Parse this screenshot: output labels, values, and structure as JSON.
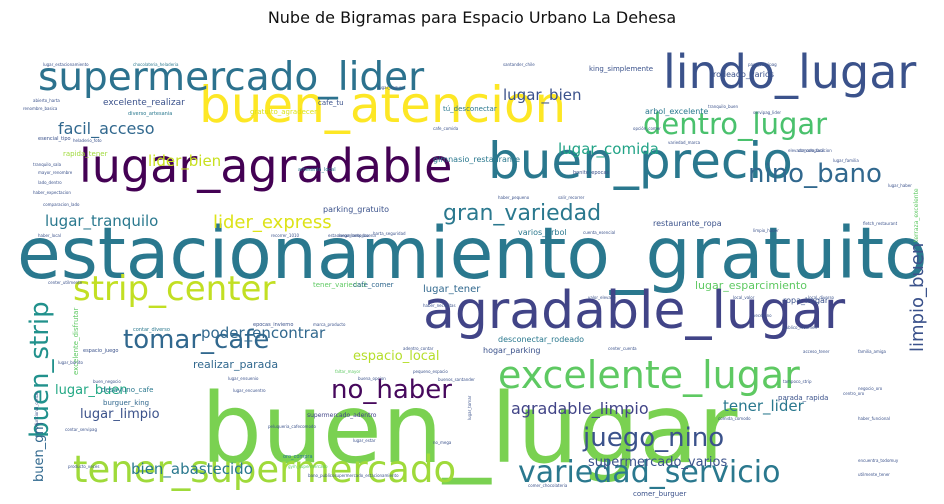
{
  "chart_data": {
    "type": "wordcloud",
    "title": "Nube de Bigramas para Espacio Urbano La Dehesa",
    "colormap": "viridis",
    "words": [
      {
        "text": "estacionamiento_gratuito",
        "weight": 100,
        "color": "#2a788e"
      },
      {
        "text": "buen_lugar",
        "weight": 98,
        "color": "#7ad151"
      },
      {
        "text": "agradable_lugar",
        "weight": 62,
        "color": "#414487"
      },
      {
        "text": "buen_atencion",
        "weight": 60,
        "color": "#fde725"
      },
      {
        "text": "buen_precio",
        "weight": 60,
        "color": "#2a788e"
      },
      {
        "text": "lugar_agradable",
        "weight": 55,
        "color": "#440154"
      },
      {
        "text": "lindo_lugar",
        "weight": 55,
        "color": "#3b528b"
      },
      {
        "text": "supermercado_lider",
        "weight": 45,
        "color": "#2c728e"
      },
      {
        "text": "excelente_lugar",
        "weight": 43,
        "color": "#5ec962"
      },
      {
        "text": "tener_supermercado",
        "weight": 43,
        "color": "#9fda3a"
      },
      {
        "text": "strip_center",
        "weight": 40,
        "color": "#c2df23"
      },
      {
        "text": "variedad_servicio",
        "weight": 34,
        "color": "#2a788e"
      },
      {
        "text": "dentro_lugar",
        "weight": 33,
        "color": "#4ac16d"
      },
      {
        "text": "juego_nino",
        "weight": 30,
        "color": "#3b528b"
      },
      {
        "text": "tomar_cafe",
        "weight": 29,
        "color": "#31688e"
      },
      {
        "text": "no_haber",
        "weight": 28,
        "color": "#46085c"
      },
      {
        "text": "nino_bano",
        "weight": 28,
        "color": "#31688e"
      },
      {
        "text": "gran_variedad",
        "weight": 25,
        "color": "#2a788e"
      },
      {
        "text": "buen_strip",
        "weight": 28,
        "color": "#21918c"
      },
      {
        "text": "limpio_buen",
        "weight": 20,
        "color": "#3b528b"
      },
      {
        "text": "lider_express",
        "weight": 19,
        "color": "#dde318"
      },
      {
        "text": "lider_bien",
        "weight": 16,
        "color": "#c8e020"
      },
      {
        "text": "facil_acceso",
        "weight": 16,
        "color": "#31688e"
      },
      {
        "text": "lugar_bien",
        "weight": 16,
        "color": "#3b528b"
      },
      {
        "text": "lugar_comida",
        "weight": 15,
        "color": "#20a386"
      },
      {
        "text": "lugar_tranquilo",
        "weight": 15,
        "color": "#2a788e"
      },
      {
        "text": "poder_encontrar",
        "weight": 15,
        "color": "#31688e"
      },
      {
        "text": "agradable_limpio",
        "weight": 17,
        "color": "#414487"
      },
      {
        "text": "bien_abastecido",
        "weight": 16,
        "color": "#2a788e"
      },
      {
        "text": "supermercado_varios",
        "weight": 14,
        "color": "#3b528b"
      },
      {
        "text": "tener_lider",
        "weight": 16,
        "color": "#2a788e"
      },
      {
        "text": "espacio_local",
        "weight": 13,
        "color": "#b5de2b"
      },
      {
        "text": "lugar_buen",
        "weight": 13,
        "color": "#22a884"
      },
      {
        "text": "lugar_limpio",
        "weight": 13,
        "color": "#3b528b"
      },
      {
        "text": "buen_gm",
        "weight": 13,
        "color": "#31688e"
      },
      {
        "text": "lugar_esparcimiento",
        "weight": 11,
        "color": "#5ec962"
      },
      {
        "text": "realizar_parada",
        "weight": 11,
        "color": "#31688e"
      },
      {
        "text": "excelente_realizar",
        "weight": 9,
        "color": "#3b528b"
      },
      {
        "text": "lugar_tener",
        "weight": 10,
        "color": "#31688e"
      },
      {
        "text": "gimnasio_restaurante",
        "weight": 8,
        "color": "#2a788e"
      },
      {
        "text": "parking_gratuito",
        "weight": 8,
        "color": "#3b528b"
      },
      {
        "text": "restaurante_ropa",
        "weight": 8,
        "color": "#3b528b"
      },
      {
        "text": "varios_arbol",
        "weight": 8,
        "color": "#2a788e"
      },
      {
        "text": "ropa_hogar",
        "weight": 8,
        "color": "#3b528b"
      },
      {
        "text": "hogar_parking",
        "weight": 8,
        "color": "#3b528b"
      },
      {
        "text": "desconectar_rodeado",
        "weight": 8,
        "color": "#2a788e"
      },
      {
        "text": "rodeado_varios",
        "weight": 8,
        "color": "#3b528b"
      },
      {
        "text": "arbol_excelente",
        "weight": 8,
        "color": "#2a788e"
      },
      {
        "text": "comer_burguer",
        "weight": 7,
        "color": "#3b528b"
      },
      {
        "text": "supermercado_adentro",
        "weight": 6,
        "color": "#414487"
      },
      {
        "text": "burguer_king",
        "weight": 7,
        "color": "#31688e"
      },
      {
        "text": "desayuno_cafe",
        "weight": 7,
        "color": "#2a788e"
      },
      {
        "text": "parada_rapida",
        "weight": 7,
        "color": "#3b528b"
      },
      {
        "text": "excelente_disfrutar",
        "weight": 7,
        "color": "#5ec962"
      },
      {
        "text": "tener_variedad",
        "weight": 7,
        "color": "#5ec962"
      },
      {
        "text": "cafe_comer",
        "weight": 7,
        "color": "#31688e"
      },
      {
        "text": "rapida_tener",
        "weight": 7,
        "color": "#9fda3a"
      },
      {
        "text": "gratuito_agradecer",
        "weight": 7,
        "color": "#dde318"
      },
      {
        "text": "cafe_tu",
        "weight": 7,
        "color": "#3b528b"
      },
      {
        "text": "tú_desconectar",
        "weight": 7,
        "color": "#2a788e"
      },
      {
        "text": "king_simplemente",
        "weight": 7,
        "color": "#3b528b"
      },
      {
        "text": "servicio_peluqueria",
        "weight": 7,
        "color": "#3b528b"
      },
      {
        "text": "disfrutar_desayuno",
        "weight": 7,
        "color": "#3b528b"
      },
      {
        "text": "simplemente_supermercado",
        "weight": 6,
        "color": "#3b528b"
      },
      {
        "text": "peluqueria_gimnasio",
        "weight": 7,
        "color": "#3b528b"
      },
      {
        "text": "espacio_juego",
        "weight": 5,
        "color": "#3b528b"
      },
      {
        "text": "contar_diverso",
        "weight": 5,
        "color": "#2a788e"
      },
      {
        "text": "oro_compra",
        "weight": 5,
        "color": "#2a788e"
      },
      {
        "text": "terraza_excelente",
        "weight": 6,
        "color": "#5ec962"
      },
      {
        "text": "bonito_epocas",
        "weight": 5,
        "color": "#3b528b"
      },
      {
        "text": "epocas_invierno",
        "weight": 5,
        "color": "#3b528b"
      },
      {
        "text": "artesania_local",
        "weight": 5,
        "color": "#2a788e"
      },
      {
        "text": "esencial_tipo",
        "weight": 5,
        "color": "#3b528b"
      },
      {
        "text": "diverso_artesania",
        "weight": 5,
        "color": "#2a788e"
      },
      {
        "text": "chocolateria_heladeria",
        "weight": 4,
        "color": "#2a788e"
      },
      {
        "text": "lugar_estacionamiento",
        "weight": 4,
        "color": "#3b528b"
      },
      {
        "text": "santander_chile",
        "weight": 4,
        "color": "#3b528b"
      },
      {
        "text": "paso_servipag",
        "weight": 4,
        "color": "#3b528b"
      },
      {
        "text": "abierto_harta",
        "weight": 4,
        "color": "#3b528b"
      },
      {
        "text": "tranquilo_buen",
        "weight": 4,
        "color": "#3b528b"
      },
      {
        "text": "elevado_comparacion",
        "weight": 4,
        "color": "#3b528b"
      },
      {
        "text": "lugar_familia",
        "weight": 4,
        "color": "#3b528b"
      },
      {
        "text": "lugar_haber",
        "weight": 4,
        "color": "#3b528b"
      },
      {
        "text": "fletch_restaurant",
        "weight": 4,
        "color": "#3b528b"
      },
      {
        "text": "comparacion_lado",
        "weight": 4,
        "color": "#3b528b"
      },
      {
        "text": "lado_dentro",
        "weight": 4,
        "color": "#3b528b"
      },
      {
        "text": "mayor_renombre",
        "weight": 4,
        "color": "#3b528b"
      },
      {
        "text": "tranquilo_sala",
        "weight": 4,
        "color": "#3b528b"
      },
      {
        "text": "heladerio_foto",
        "weight": 4,
        "color": "#3b528b"
      },
      {
        "text": "renombre_basica",
        "weight": 4,
        "color": "#3b528b"
      },
      {
        "text": "harta_seguridad",
        "weight": 4,
        "color": "#3b528b"
      },
      {
        "text": "cuenta_esencial",
        "weight": 4,
        "color": "#3b528b"
      },
      {
        "text": "haber_local",
        "weight": 4,
        "color": "#3b528b"
      },
      {
        "text": "center_utilmente",
        "weight": 4,
        "color": "#3b528b"
      },
      {
        "text": "marca_producto",
        "weight": 4,
        "color": "#3b528b"
      },
      {
        "text": "valor_elevado",
        "weight": 4,
        "color": "#3b528b"
      },
      {
        "text": "local_valor",
        "weight": 4,
        "color": "#3b528b"
      },
      {
        "text": "local_diverso",
        "weight": 4,
        "color": "#3b528b"
      },
      {
        "text": "publico_recomeir",
        "weight": 4,
        "color": "#3b528b"
      },
      {
        "text": "familia_amiga",
        "weight": 4,
        "color": "#3b528b"
      },
      {
        "text": "acceso_tener",
        "weight": 4,
        "color": "#3b528b"
      },
      {
        "text": "center_cuenta",
        "weight": 4,
        "color": "#3b528b"
      },
      {
        "text": "lugar_ensuenio",
        "weight": 4,
        "color": "#3b528b"
      },
      {
        "text": "pequeno_espacio",
        "weight": 4,
        "color": "#3b528b"
      },
      {
        "text": "buena_opcion",
        "weight": 4,
        "color": "#3b528b"
      },
      {
        "text": "buen_negocio",
        "weight": 4,
        "color": "#3b528b"
      },
      {
        "text": "negocio_oro",
        "weight": 4,
        "color": "#3b528b"
      },
      {
        "text": "haber_funcional",
        "weight": 4,
        "color": "#3b528b"
      },
      {
        "text": "encuentra_todomuy",
        "weight": 4,
        "color": "#3b528b"
      },
      {
        "text": "utilmente_tener",
        "weight": 4,
        "color": "#3b528b"
      },
      {
        "text": "producto_veces",
        "weight": 4,
        "color": "#3b528b"
      },
      {
        "text": "gym_supermercado",
        "weight": 4,
        "color": "#5ec962"
      },
      {
        "text": "bano_publicosupermercado_estacionamiento",
        "weight": 4,
        "color": "#3b528b"
      },
      {
        "text": "comer_chocolateria",
        "weight": 4,
        "color": "#3b528b"
      },
      {
        "text": "compra_pequeno",
        "weight": 4,
        "color": "#3b528b"
      },
      {
        "text": "foto_uncle",
        "weight": 4,
        "color": "#3b528b"
      },
      {
        "text": "basica_haber",
        "weight": 4,
        "color": "#3b528b"
      },
      {
        "text": "funcional_contar",
        "weight": 4,
        "color": "#3b528b"
      },
      {
        "text": "contar_servipag",
        "weight": 4,
        "color": "#3b528b"
      },
      {
        "text": "haber_expectacion",
        "weight": 4,
        "color": "#3b528b"
      },
      {
        "text": "recorrer_1010",
        "weight": 4,
        "color": "#3b528b"
      },
      {
        "text": "mega_tampoco",
        "weight": 4,
        "color": "#3b528b"
      },
      {
        "text": "buenos_santander",
        "weight": 4,
        "color": "#3b528b"
      },
      {
        "text": "adentro_contar",
        "weight": 4,
        "color": "#3b528b"
      },
      {
        "text": "peluqueria_cafecomodo",
        "weight": 4,
        "color": "#3b528b"
      },
      {
        "text": "comodo_facil",
        "weight": 4,
        "color": "#3b528b"
      },
      {
        "text": "limpio_haber",
        "weight": 4,
        "color": "#3b528b"
      },
      {
        "text": "servipag_lider",
        "weight": 4,
        "color": "#3b528b"
      },
      {
        "text": "variedad_marca",
        "weight": 4,
        "color": "#3b528b"
      },
      {
        "text": "opción_comer",
        "weight": 4,
        "color": "#3b528b"
      },
      {
        "text": "haber_pequeno",
        "weight": 4,
        "color": "#3b528b"
      },
      {
        "text": "salir_recorrer",
        "weight": 4,
        "color": "#3b528b"
      },
      {
        "text": "haber_necesitas",
        "weight": 4,
        "color": "#3b528b"
      },
      {
        "text": "veces_no",
        "weight": 4,
        "color": "#3b528b"
      },
      {
        "text": "tampoco_strip",
        "weight": 4,
        "color": "#3b528b"
      },
      {
        "text": "estacionamiento_buena",
        "weight": 4,
        "color": "#3b528b"
      },
      {
        "text": "lugar_seguro",
        "weight": 4,
        "color": "#3b528b"
      },
      {
        "text": "cafe_comida",
        "weight": 4,
        "color": "#3b528b"
      },
      {
        "text": "lugar_bonito",
        "weight": 4,
        "color": "#3b528b"
      },
      {
        "text": "comida_comodo",
        "weight": 4,
        "color": "#3b528b"
      },
      {
        "text": "faltar_mayor",
        "weight": 4,
        "color": "#5ec962"
      },
      {
        "text": "lugar_encuentro",
        "weight": 4,
        "color": "#3b528b"
      },
      {
        "text": "lugar_tomar",
        "weight": 4,
        "color": "#3b528b"
      },
      {
        "text": "centro_oro",
        "weight": 4,
        "color": "#3b528b"
      },
      {
        "text": "no_mega",
        "weight": 4,
        "color": "#3b528b"
      },
      {
        "text": "lugar_estar",
        "weight": 4,
        "color": "#3b528b"
      }
    ]
  }
}
